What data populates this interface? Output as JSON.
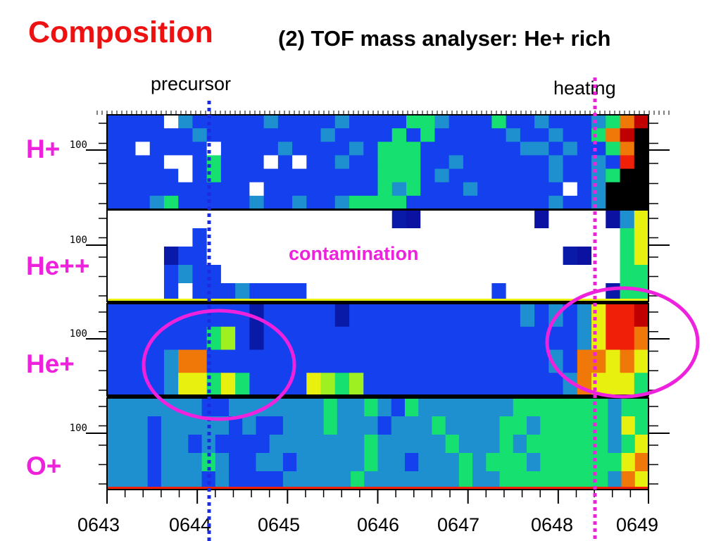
{
  "title": "Composition",
  "subtitle": "(2) TOF mass analyser: He+ rich",
  "markers": {
    "precursor": "precursor",
    "heating": "heating"
  },
  "annotation": "contamination",
  "colors": {
    "title": "#ee1111",
    "species": "#ee22dd",
    "precursor_line": "#1a2be0",
    "heating_line": "#ee22dd"
  },
  "chart_data": {
    "type": "heatmap",
    "title": "Composition",
    "subtitle": "(2) TOF mass analyser: He+ rich",
    "x_ticks": [
      "0643",
      "0644",
      "0645",
      "0646",
      "0647",
      "0648",
      "0649"
    ],
    "xlim": [
      "0643",
      "0649"
    ],
    "ytick_label": "100",
    "panels": [
      {
        "name": "H+",
        "rows": [
          "bbbbwcbbbbbcbbbbcbbbbggcbbbgbbcbbbcgOr",
          "bbbbbbcbbbbbbbbcbbbbgbgbbbbbcbbcbbgOrk",
          "bbwbbbbwbbbbcbbbbcbgggbbbbbbbccbcbbgOk",
          "bbbbwwbgbbbwbwbbcbbgggbbcbbbbbbcbbcbRk",
          "bbbbbwbgbbbbbbbbbbbgggbcbbbbbbbcbbcgkk",
          "bbbbbbbbbbwbbbbbbbbgcgbbbcbbbbbbwbckkk",
          "bbbcgbbbbbcbbcbbcggggbbbbbbbbbbcbbckkk"
        ]
      },
      {
        "name": "He++",
        "rows": [
          "wwwwwwwwwwwwwwwwwwwwndwwwwwwwwdwwwwdcY",
          "wwwwwwbwwwwwwwwwwwwwwwwwwwwwwwwwwwwwgY",
          "wwwwnbbwwwwwwwwwwwwwwwwwwwwwwwwwndwwgY",
          "wwwwbcbbwwwwwwwwwwwwwwwwwwwwwwwwwwwwgg",
          "wwwwbwbbbcbbbbwwwwwwwwwwwwwbwwwwwwwngg"
        ]
      },
      {
        "name": "He+",
        "rows": [
          "bbbbbbbbbbnbbbbbnbbbbbbbbbbbbcbcbcYRRr",
          "bbbbbbbgGbnbbbbbbbbbbbbbbbbbbbbbbcYRRO",
          "bbbbcOObbbbbbbbbbbbbbbbbbbbbbbbcbOOYOY",
          "bbbbcYYgYgbbbbYGgGbbbbbbbbbbbbbbcOYYYg"
        ]
      },
      {
        "name": "O+",
        "rows": [
          "cccccccbbcccccccgccgcbgcccccccgggggggcgg",
          "cccbcccccbcbbcccgcccbcccgccccggcgggggcYg",
          "cccbccbcbbbbcccccccgcccccgcccgcggggggcgY",
          "cccbcccgcbbccbcccccgccbcccgcgggcggggggYO",
          "cccbcccbcbbbbcccccgcccccccgccggggggggcOY"
        ]
      }
    ],
    "colorscale": "blue (low) - cyan - green - yellow - orange - red - black (high)"
  }
}
